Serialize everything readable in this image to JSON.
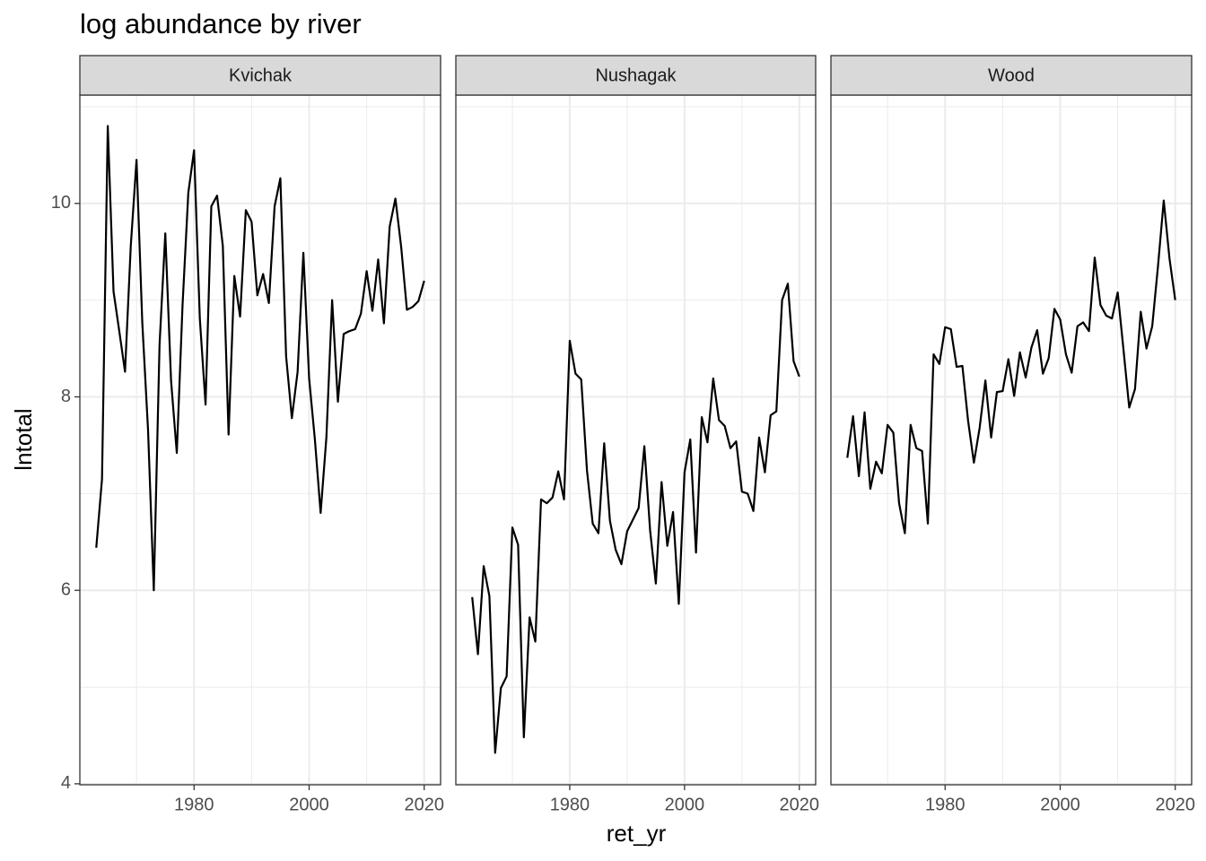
{
  "chart_data": {
    "type": "line",
    "title": "log abundance by river",
    "xlabel": "ret_yr",
    "ylabel": "lntotal",
    "facet": true,
    "grid": true,
    "x": [
      1963,
      1964,
      1965,
      1966,
      1967,
      1968,
      1969,
      1970,
      1971,
      1972,
      1973,
      1974,
      1975,
      1976,
      1977,
      1978,
      1979,
      1980,
      1981,
      1982,
      1983,
      1984,
      1985,
      1986,
      1987,
      1988,
      1989,
      1990,
      1991,
      1992,
      1993,
      1994,
      1995,
      1996,
      1997,
      1998,
      1999,
      2000,
      2001,
      2002,
      2003,
      2004,
      2005,
      2006,
      2007,
      2008,
      2009,
      2010,
      2011,
      2012,
      2013,
      2014,
      2015,
      2016,
      2017,
      2018,
      2019,
      2020
    ],
    "xlim": [
      1960.15,
      2022.85
    ],
    "xticks": [
      1980,
      2000,
      2020
    ],
    "xminorticks": [
      1970,
      1990,
      2010
    ],
    "ylim": [
      3.99,
      11.12
    ],
    "yticks": [
      4,
      6,
      8,
      10
    ],
    "yminorticks": [
      5,
      7,
      9,
      11
    ],
    "series": [
      {
        "name": "Kvichak",
        "color": "#000000",
        "values": [
          6.44,
          7.15,
          10.8,
          9.09,
          8.68,
          8.26,
          9.56,
          10.45,
          8.77,
          7.66,
          6.0,
          8.54,
          9.69,
          8.17,
          7.42,
          8.95,
          10.11,
          10.55,
          8.81,
          7.92,
          9.97,
          10.08,
          9.56,
          7.61,
          9.25,
          8.83,
          9.93,
          9.81,
          9.05,
          9.27,
          8.97,
          9.97,
          10.26,
          8.42,
          7.78,
          8.26,
          9.49,
          8.19,
          7.56,
          6.8,
          7.58,
          9.0,
          7.95,
          8.65,
          8.68,
          8.7,
          8.86,
          9.3,
          8.89,
          9.42,
          8.76,
          9.76,
          10.05,
          9.55,
          8.9,
          8.93,
          8.99,
          9.2
        ]
      },
      {
        "name": "Nushagak",
        "color": "#000000",
        "values": [
          5.93,
          5.34,
          6.25,
          5.94,
          4.32,
          4.99,
          5.11,
          6.65,
          6.47,
          4.48,
          5.72,
          5.47,
          6.94,
          6.9,
          6.96,
          7.23,
          6.94,
          8.58,
          8.24,
          8.18,
          7.24,
          6.69,
          6.59,
          7.52,
          6.72,
          6.42,
          6.27,
          6.61,
          6.73,
          6.85,
          7.49,
          6.62,
          6.07,
          7.12,
          6.46,
          6.81,
          5.86,
          7.22,
          7.56,
          6.39,
          7.79,
          7.53,
          8.19,
          7.76,
          7.7,
          7.47,
          7.54,
          7.02,
          7.0,
          6.82,
          7.58,
          7.22,
          7.81,
          7.85,
          9.0,
          9.17,
          8.37,
          8.21
        ]
      },
      {
        "name": "Wood",
        "color": "#000000",
        "values": [
          7.37,
          7.8,
          7.18,
          7.84,
          7.05,
          7.33,
          7.21,
          7.71,
          7.63,
          6.9,
          6.59,
          7.71,
          7.47,
          7.44,
          6.69,
          8.44,
          8.34,
          8.72,
          8.7,
          8.31,
          8.32,
          7.75,
          7.32,
          7.68,
          8.17,
          7.58,
          8.05,
          8.06,
          8.39,
          8.01,
          8.46,
          8.2,
          8.51,
          8.69,
          8.24,
          8.4,
          8.91,
          8.8,
          8.44,
          8.25,
          8.73,
          8.77,
          8.68,
          9.44,
          8.95,
          8.84,
          8.81,
          9.08,
          8.49,
          7.89,
          8.08,
          8.88,
          8.5,
          8.73,
          9.35,
          10.03,
          9.43,
          9.0
        ]
      }
    ]
  }
}
